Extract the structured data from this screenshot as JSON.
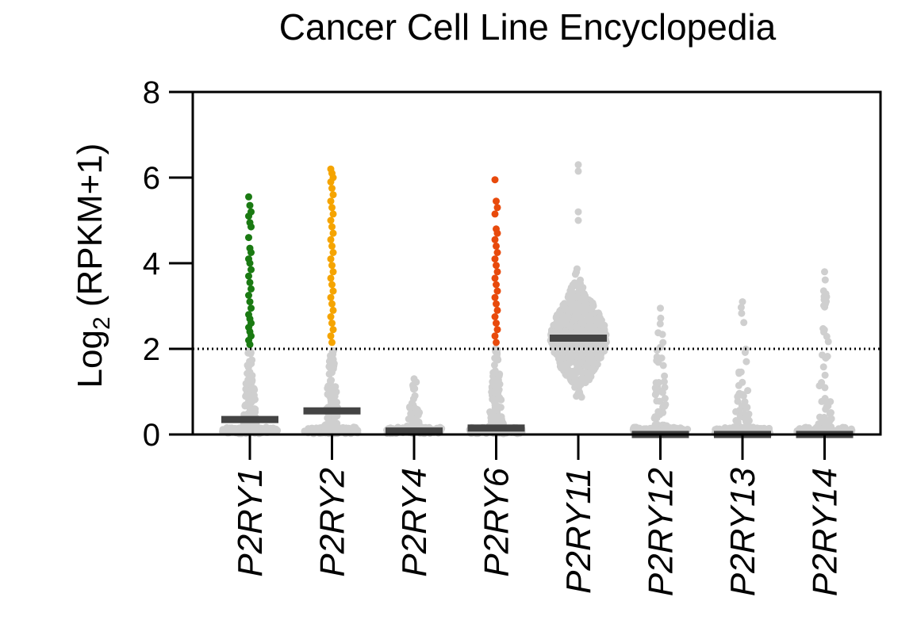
{
  "chart_data": {
    "type": "scatter",
    "title": "Cancer Cell Line Encyclopedia",
    "ylabel": {
      "prefix": "Log",
      "subscript": "2",
      "suffix": " (RPKM+1)"
    },
    "xlabel": "",
    "ylim": [
      0,
      8
    ],
    "yticks": [
      0,
      2,
      4,
      6,
      8
    ],
    "threshold": 2,
    "grid": false,
    "legend": "none",
    "categories": [
      "P2RY1",
      "P2RY2",
      "P2RY4",
      "P2RY6",
      "P2RY11",
      "P2RY12",
      "P2RY13",
      "P2RY14"
    ],
    "series": [
      {
        "category": "P2RY1",
        "median": 0.35,
        "max": 5.55,
        "high_color": "#1a7a12",
        "high_values": [
          5.55,
          5.35,
          5.2,
          5.1,
          4.95,
          4.85,
          4.6,
          4.35,
          4.25,
          4.1,
          4.0,
          3.85,
          3.7,
          3.55,
          3.4,
          3.25,
          3.1,
          2.95,
          2.8,
          2.7,
          2.6,
          2.5,
          2.4,
          2.3,
          2.2,
          2.1
        ]
      },
      {
        "category": "P2RY2",
        "median": 0.55,
        "max": 6.2,
        "high_color": "#f5a400",
        "high_values": [
          6.2,
          6.1,
          6.0,
          5.9,
          5.75,
          5.6,
          5.45,
          5.3,
          5.15,
          5.0,
          4.85,
          4.7,
          4.55,
          4.4,
          4.25,
          4.1,
          3.95,
          3.8,
          3.65,
          3.5,
          3.35,
          3.2,
          3.05,
          2.9,
          2.75,
          2.6,
          2.45,
          2.3,
          2.15
        ]
      },
      {
        "category": "P2RY4",
        "median": 0.08,
        "max": 1.3,
        "high_color": "#cfcfcf",
        "high_values": []
      },
      {
        "category": "P2RY6",
        "median": 0.15,
        "max": 5.95,
        "high_color": "#e84a0c",
        "high_values": [
          5.95,
          5.45,
          5.3,
          5.15,
          4.8,
          4.7,
          4.55,
          4.4,
          4.25,
          4.1,
          3.95,
          3.8,
          3.65,
          3.5,
          3.35,
          3.2,
          3.05,
          2.9,
          2.75,
          2.6,
          2.45,
          2.3,
          2.15
        ]
      },
      {
        "category": "P2RY11",
        "median": 2.25,
        "max": 6.3,
        "high_color": "#cfcfcf",
        "high_values": []
      },
      {
        "category": "P2RY12",
        "median": 0.0,
        "max": 2.95,
        "high_color": "#cfcfcf",
        "high_values": []
      },
      {
        "category": "P2RY13",
        "median": 0.0,
        "max": 3.1,
        "high_color": "#cfcfcf",
        "high_values": []
      },
      {
        "category": "P2RY14",
        "median": 0.0,
        "max": 3.8,
        "high_color": "#cfcfcf",
        "high_values": []
      }
    ],
    "colors": {
      "low_points": "#cfcfcf",
      "median_bar": "#444444",
      "axis": "#000000"
    }
  }
}
